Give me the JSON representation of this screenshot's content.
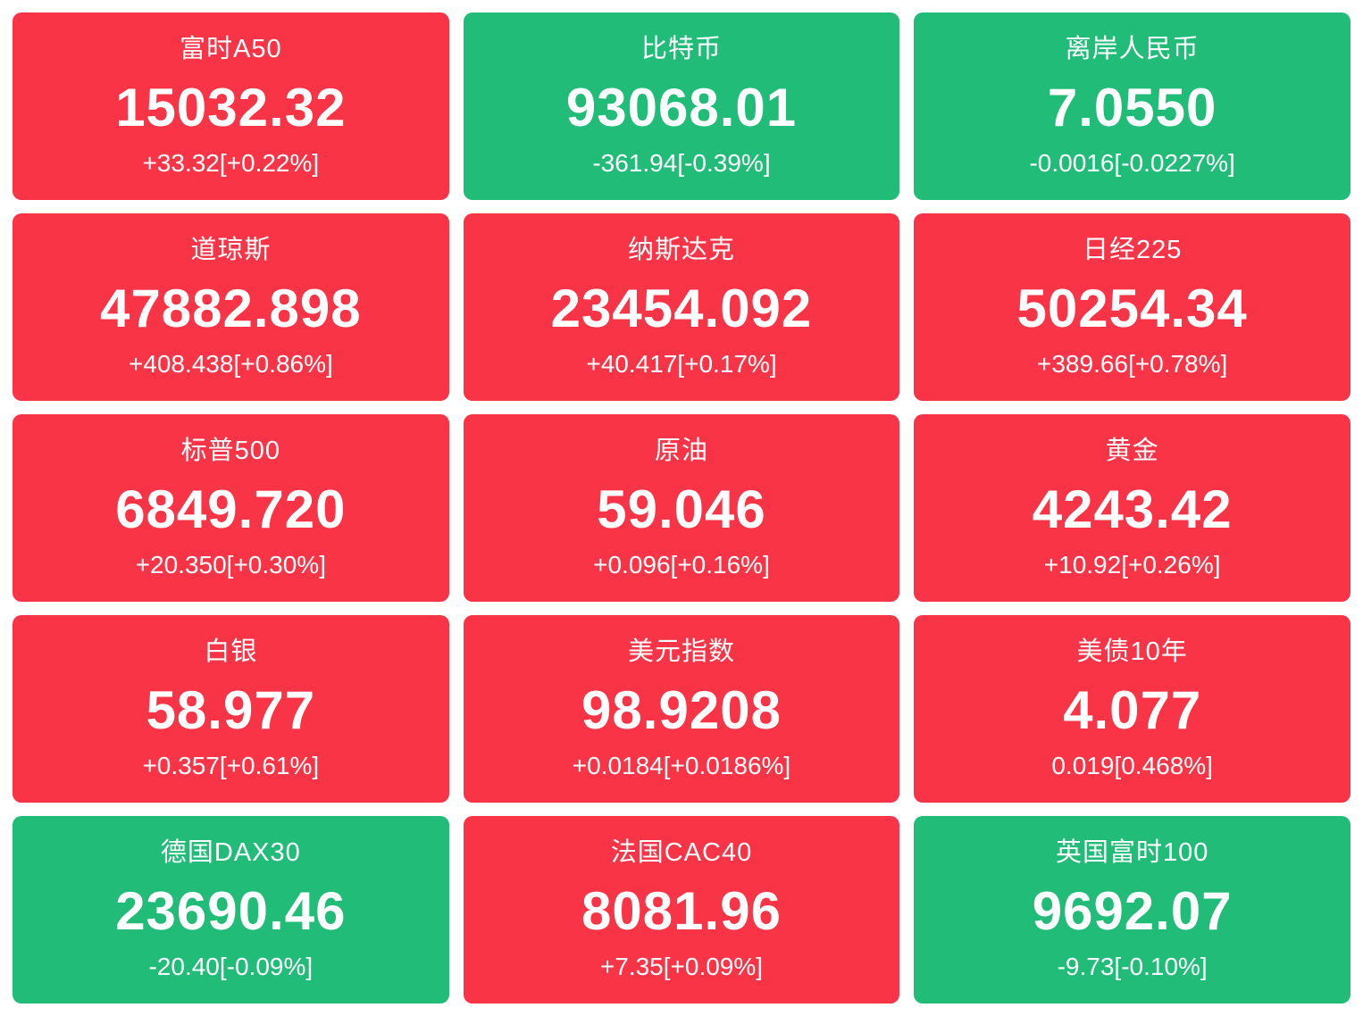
{
  "colors": {
    "up": "#f93446",
    "down": "#20bc78"
  },
  "tiles": [
    {
      "name": "富时A50",
      "value": "15032.32",
      "change": "+33.32[+0.22%]",
      "direction": "up"
    },
    {
      "name": "比特币",
      "value": "93068.01",
      "change": "-361.94[-0.39%]",
      "direction": "down"
    },
    {
      "name": "离岸人民币",
      "value": "7.0550",
      "change": "-0.0016[-0.0227%]",
      "direction": "down"
    },
    {
      "name": "道琼斯",
      "value": "47882.898",
      "change": "+408.438[+0.86%]",
      "direction": "up"
    },
    {
      "name": "纳斯达克",
      "value": "23454.092",
      "change": "+40.417[+0.17%]",
      "direction": "up"
    },
    {
      "name": "日经225",
      "value": "50254.34",
      "change": "+389.66[+0.78%]",
      "direction": "up"
    },
    {
      "name": "标普500",
      "value": "6849.720",
      "change": "+20.350[+0.30%]",
      "direction": "up"
    },
    {
      "name": "原油",
      "value": "59.046",
      "change": "+0.096[+0.16%]",
      "direction": "up"
    },
    {
      "name": "黄金",
      "value": "4243.42",
      "change": "+10.92[+0.26%]",
      "direction": "up"
    },
    {
      "name": "白银",
      "value": "58.977",
      "change": "+0.357[+0.61%]",
      "direction": "up"
    },
    {
      "name": "美元指数",
      "value": "98.9208",
      "change": "+0.0184[+0.0186%]",
      "direction": "up"
    },
    {
      "name": "美债10年",
      "value": "4.077",
      "change": "0.019[0.468%]",
      "direction": "up"
    },
    {
      "name": "德国DAX30",
      "value": "23690.46",
      "change": "-20.40[-0.09%]",
      "direction": "down"
    },
    {
      "name": "法国CAC40",
      "value": "8081.96",
      "change": "+7.35[+0.09%]",
      "direction": "up"
    },
    {
      "name": "英国富时100",
      "value": "9692.07",
      "change": "-9.73[-0.10%]",
      "direction": "down"
    }
  ]
}
